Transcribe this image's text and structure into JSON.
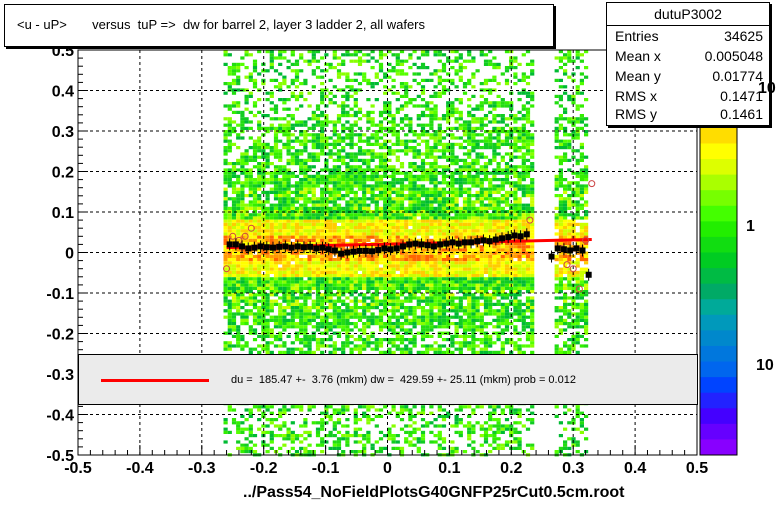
{
  "title": "<u - uP>       versus  tuP =>  dw for barrel 2, layer 3 ladder 2, all wafers",
  "footer": "../Pass54_NoFieldPlotsG40GNFP25rCut0.5cm.root",
  "stats": {
    "name": "dutuP3002",
    "rows": [
      {
        "label": "Entries",
        "value": "34625"
      },
      {
        "label": "Mean x",
        "value": "0.005048"
      },
      {
        "label": "Mean y",
        "value": "0.01774"
      },
      {
        "label": "RMS x",
        "value": "0.1471"
      },
      {
        "label": "RMS y",
        "value": "0.1461"
      }
    ]
  },
  "legend": {
    "text": "du =  185.47 +-  3.76 (mkm) dw =  429.59 +- 25.11 (mkm) prob = 0.012",
    "line_color": "#ff0000"
  },
  "colorbar_labels": [
    "10",
    "1",
    "10"
  ],
  "chart_data": {
    "type": "heatmap",
    "xlim": [
      -0.5,
      0.5
    ],
    "ylim": [
      -0.5,
      0.5
    ],
    "xticks": [
      "-0.5",
      "-0.4",
      "-0.3",
      "-0.2",
      "-0.1",
      "0",
      "0.1",
      "0.2",
      "0.3",
      "0.4",
      "0.5"
    ],
    "yticks": [
      "-0.5",
      "-0.4",
      "-0.3",
      "-0.2",
      "-0.1",
      "0",
      "0.1",
      "0.2",
      "0.3",
      "0.4",
      "0.5"
    ],
    "grid": true,
    "occupied_x_ranges": [
      [
        -0.265,
        0.232
      ],
      [
        0.27,
        0.32
      ]
    ],
    "profile_points": {
      "x": [
        -0.255,
        -0.245,
        -0.235,
        -0.225,
        -0.215,
        -0.205,
        -0.195,
        -0.185,
        -0.175,
        -0.165,
        -0.155,
        -0.145,
        -0.135,
        -0.125,
        -0.115,
        -0.105,
        -0.095,
        -0.085,
        -0.075,
        -0.065,
        -0.055,
        -0.045,
        -0.035,
        -0.025,
        -0.015,
        -0.005,
        0.005,
        0.015,
        0.025,
        0.035,
        0.045,
        0.055,
        0.065,
        0.075,
        0.085,
        0.095,
        0.105,
        0.115,
        0.125,
        0.135,
        0.145,
        0.155,
        0.165,
        0.175,
        0.185,
        0.195,
        0.205,
        0.215,
        0.225,
        0.265,
        0.275,
        0.285,
        0.295,
        0.305,
        0.315,
        0.325
      ],
      "y": [
        0.02,
        0.02,
        0.015,
        0.01,
        0.012,
        0.015,
        0.013,
        0.012,
        0.014,
        0.015,
        0.012,
        0.015,
        0.013,
        0.014,
        0.01,
        0.012,
        0.008,
        0.005,
        -0.003,
        0.0,
        0.002,
        0.004,
        0.004,
        0.003,
        0.006,
        0.01,
        0.008,
        0.01,
        0.015,
        0.02,
        0.022,
        0.02,
        0.018,
        0.015,
        0.02,
        0.022,
        0.025,
        0.022,
        0.025,
        0.025,
        0.028,
        0.03,
        0.028,
        0.032,
        0.035,
        0.038,
        0.042,
        0.04,
        0.045,
        -0.01,
        0.01,
        0.008,
        0.005,
        0.01,
        0.005,
        -0.055
      ]
    },
    "open_points": {
      "x": [
        -0.26,
        -0.25,
        -0.24,
        -0.23,
        -0.22,
        0.23,
        0.28,
        0.29,
        0.3,
        0.31,
        0.32,
        0.33
      ],
      "y": [
        -0.04,
        0.04,
        0.03,
        0.04,
        0.06,
        0.08,
        0.01,
        -0.03,
        -0.04,
        -0.09,
        0.03,
        0.17
      ]
    },
    "fit_line": {
      "x": [
        -0.26,
        0.33
      ],
      "y": [
        0.012,
        0.032
      ]
    }
  }
}
